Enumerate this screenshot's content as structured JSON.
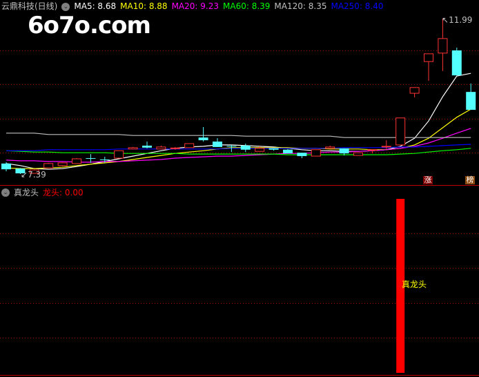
{
  "header": {
    "stock_title": "云鼎科技(日线)",
    "ma_labels": [
      {
        "text": "MA5: 8.68",
        "color": "#ffffff"
      },
      {
        "text": "MA10: 8.88",
        "color": "#ffff00"
      },
      {
        "text": "MA20: 9.23",
        "color": "#ff00ff"
      },
      {
        "text": "MA60: 8.39",
        "color": "#00ff00"
      },
      {
        "text": "MA120: 8.35",
        "color": "#c0c0c0"
      },
      {
        "text": "MA250: 8.40",
        "color": "#0000ff"
      }
    ]
  },
  "watermark": "6o7o.com",
  "indicator": {
    "name": "真龙头",
    "value_label": "龙头: 0.00",
    "signal_text": "真龙头"
  },
  "markers": [
    {
      "text": "涨",
      "color": "#800000"
    },
    {
      "text": "榜",
      "color": "#8b4a10"
    }
  ],
  "chart_data": [
    {
      "type": "candlestick",
      "ylim": [
        7.39,
        11.99
      ],
      "high_label": "11.99",
      "low_label": "7.39",
      "grid": true,
      "colors": {
        "up": "#ff3333",
        "down": "#54ffff"
      },
      "ohlc": [
        [
          7.7,
          7.74,
          7.47,
          7.53
        ],
        [
          7.55,
          7.57,
          7.39,
          7.41
        ],
        [
          7.41,
          7.53,
          7.41,
          7.51
        ],
        [
          7.57,
          7.72,
          7.57,
          7.7
        ],
        [
          7.64,
          7.74,
          7.62,
          7.72
        ],
        [
          7.7,
          7.86,
          7.7,
          7.84
        ],
        [
          7.86,
          7.98,
          7.72,
          7.85
        ],
        [
          7.82,
          7.9,
          7.72,
          7.81
        ],
        [
          7.86,
          8.08,
          7.86,
          8.08
        ],
        [
          8.13,
          8.19,
          8.13,
          8.17
        ],
        [
          8.23,
          8.35,
          8.15,
          8.17
        ],
        [
          8.13,
          8.23,
          8.13,
          8.19
        ],
        [
          8.15,
          8.19,
          8.11,
          8.16
        ],
        [
          8.17,
          8.29,
          8.17,
          8.29
        ],
        [
          8.47,
          8.78,
          8.35,
          8.39
        ],
        [
          8.35,
          8.45,
          8.19,
          8.19
        ],
        [
          8.22,
          8.25,
          8.04,
          8.21
        ],
        [
          8.23,
          8.29,
          8.04,
          8.11
        ],
        [
          8.06,
          8.21,
          8.06,
          8.15
        ],
        [
          8.15,
          8.15,
          8.08,
          8.11
        ],
        [
          8.11,
          8.13,
          8.0,
          8.0
        ],
        [
          8.02,
          8.02,
          7.86,
          7.92
        ],
        [
          7.92,
          8.11,
          7.92,
          8.11
        ],
        [
          8.15,
          8.23,
          8.15,
          8.19
        ],
        [
          8.15,
          8.15,
          7.94,
          8.0
        ],
        [
          7.94,
          8.02,
          7.94,
          8.02
        ],
        [
          8.1,
          8.11,
          8.0,
          8.11
        ],
        [
          8.2,
          8.39,
          8.13,
          8.21
        ],
        [
          8.25,
          9.05,
          8.25,
          9.05
        ],
        [
          9.78,
          9.95,
          9.66,
          9.95
        ],
        [
          10.72,
          10.95,
          10.15,
          10.95
        ],
        [
          10.97,
          11.99,
          10.44,
          11.4
        ],
        [
          11.05,
          11.13,
          10.31,
          10.31
        ],
        [
          9.82,
          10.07,
          9.29,
          9.29
        ]
      ],
      "series": [
        {
          "name": "MA5",
          "color": "#ffffff",
          "values": [
            7.7,
            7.64,
            7.55,
            7.53,
            7.55,
            7.61,
            7.68,
            7.76,
            7.84,
            7.92,
            8.0,
            8.08,
            8.15,
            8.19,
            8.21,
            8.25,
            8.25,
            8.23,
            8.21,
            8.19,
            8.15,
            8.11,
            8.08,
            8.08,
            8.06,
            8.06,
            8.08,
            8.11,
            8.21,
            8.45,
            8.96,
            9.68,
            10.29,
            10.37
          ]
        },
        {
          "name": "MA10",
          "color": "#ffff00",
          "values": [
            7.57,
            7.55,
            7.55,
            7.57,
            7.59,
            7.64,
            7.68,
            7.72,
            7.76,
            7.82,
            7.88,
            7.94,
            8.0,
            8.04,
            8.08,
            8.13,
            8.17,
            8.17,
            8.17,
            8.17,
            8.17,
            8.15,
            8.15,
            8.13,
            8.13,
            8.13,
            8.11,
            8.11,
            8.15,
            8.25,
            8.45,
            8.76,
            9.07,
            9.31
          ]
        },
        {
          "name": "MA20",
          "color": "#ff00ff",
          "values": [
            7.8,
            7.78,
            7.78,
            7.76,
            7.76,
            7.74,
            7.74,
            7.76,
            7.76,
            7.78,
            7.8,
            7.82,
            7.86,
            7.88,
            7.9,
            7.92,
            7.92,
            7.94,
            7.96,
            7.98,
            8.0,
            8.0,
            8.02,
            8.04,
            8.04,
            8.06,
            8.08,
            8.11,
            8.15,
            8.21,
            8.31,
            8.45,
            8.6,
            8.74
          ]
        },
        {
          "name": "MA60",
          "color": "#00ff00",
          "values": [
            8.08,
            8.06,
            8.04,
            8.04,
            8.02,
            8.02,
            8.02,
            8.02,
            8.0,
            8.0,
            8.0,
            8.0,
            8.0,
            7.98,
            7.98,
            7.98,
            7.98,
            7.98,
            7.98,
            7.98,
            7.96,
            7.96,
            7.96,
            7.96,
            7.96,
            7.96,
            7.96,
            7.96,
            7.98,
            8.0,
            8.04,
            8.08,
            8.11,
            8.15
          ]
        },
        {
          "name": "MA120",
          "color": "#c0c0c0",
          "values": [
            8.6,
            8.6,
            8.6,
            8.56,
            8.56,
            8.56,
            8.56,
            8.56,
            8.56,
            8.53,
            8.53,
            8.53,
            8.53,
            8.53,
            8.53,
            8.53,
            8.53,
            8.51,
            8.51,
            8.51,
            8.51,
            8.51,
            8.51,
            8.51,
            8.47,
            8.47,
            8.47,
            8.47,
            8.47,
            8.47,
            8.47,
            8.47,
            8.47,
            8.47
          ]
        },
        {
          "name": "MA250",
          "color": "#0000ff",
          "values": [
            8.08,
            8.08,
            8.08,
            8.11,
            8.11,
            8.11,
            8.11,
            8.11,
            8.13,
            8.13,
            8.13,
            8.13,
            8.13,
            8.13,
            8.13,
            8.13,
            8.15,
            8.15,
            8.15,
            8.15,
            8.15,
            8.15,
            8.15,
            8.15,
            8.17,
            8.17,
            8.17,
            8.17,
            8.19,
            8.19,
            8.21,
            8.23,
            8.25,
            8.27
          ]
        }
      ]
    },
    {
      "type": "bar",
      "name": "龙头",
      "color": "#ff0000",
      "values": [
        0,
        0,
        0,
        0,
        0,
        0,
        0,
        0,
        0,
        0,
        0,
        0,
        0,
        0,
        0,
        0,
        0,
        0,
        0,
        0,
        0,
        0,
        0,
        0,
        0,
        0,
        0,
        0,
        1,
        0,
        0,
        0,
        0,
        0
      ],
      "ylim": [
        0,
        1
      ]
    }
  ]
}
